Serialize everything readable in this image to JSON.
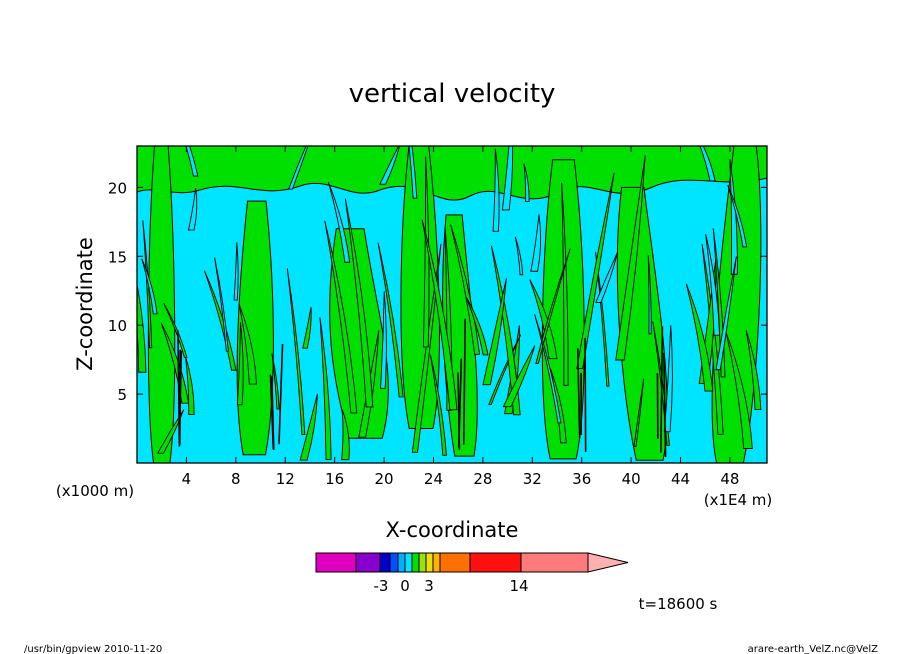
{
  "chart_data": {
    "type": "heatmap",
    "title": "vertical velocity",
    "xlabel": "X-coordinate",
    "ylabel": "Z-coordinate",
    "x_unit_left": "(x1000 m)",
    "x_unit_right": "(x1E4 m)",
    "xlim": [
      0,
      51
    ],
    "ylim": [
      0,
      23
    ],
    "x_ticks": [
      4,
      8,
      12,
      16,
      20,
      24,
      28,
      32,
      36,
      40,
      44,
      48
    ],
    "y_ticks": [
      5,
      10,
      15,
      20
    ],
    "grid": false,
    "dominant_levels": [
      {
        "name": "weak negative",
        "color": "#00e5ff"
      },
      {
        "name": "weak positive",
        "color": "#00e000"
      }
    ],
    "colorbar": {
      "colors": [
        "#e000c0",
        "#8800cc",
        "#0000c8",
        "#0050ff",
        "#00b0ff",
        "#00e5ff",
        "#00e000",
        "#a0e000",
        "#e8e000",
        "#ffb000",
        "#ff7000",
        "#ff1010",
        "#ff7a7a",
        "#ffb0b0"
      ],
      "tick_labels": [
        {
          "label": "-3",
          "value": -3
        },
        {
          "label": "0",
          "value": 0
        },
        {
          "label": "3",
          "value": 3
        },
        {
          "label": "14",
          "value": 14
        }
      ]
    },
    "time_label": "t=18600 s"
  },
  "footer": {
    "left": "/usr/bin/gpview   2010-11-20",
    "right": "arare-earth_VelZ.nc@VelZ"
  }
}
